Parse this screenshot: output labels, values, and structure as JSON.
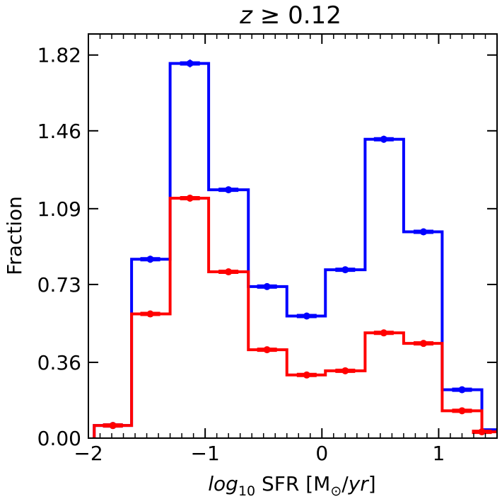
{
  "chart_data": {
    "type": "histogram-step",
    "title": "z ≥ 0.12",
    "title_parts": {
      "var": "z",
      "rest": " ≥ 0.12"
    },
    "xlabel": "log10 SFR [M⊙/yr]",
    "xlabel_parts": {
      "log": "log",
      "sub": "10",
      "mid": " SFR [M",
      "sun_sub": "⊙",
      "slash": "/",
      "yr": "yr",
      "end": "]"
    },
    "ylabel": "Fraction",
    "xlim": [
      -2.0,
      1.5
    ],
    "ylim": [
      0.0,
      1.92
    ],
    "xticks": [
      -2,
      -1,
      0,
      1
    ],
    "xtick_labels": [
      "−2",
      "−1",
      "0",
      "1"
    ],
    "yticks": [
      0.0,
      0.36,
      0.73,
      1.09,
      1.46,
      1.82
    ],
    "ytick_labels": [
      "0.00",
      "0.36",
      "0.73",
      "1.09",
      "1.46",
      "1.82"
    ],
    "bin_edges": [
      -1.95,
      -1.63,
      -1.3,
      -0.97,
      -0.63,
      -0.3,
      0.03,
      0.37,
      0.7,
      1.03,
      1.37,
      1.5
    ],
    "series": [
      {
        "name": "blue",
        "color": "#0000ff",
        "values": [
          0.06,
          0.85,
          1.78,
          1.18,
          0.72,
          0.58,
          0.8,
          1.42,
          0.98,
          0.23,
          0.04
        ],
        "errors": [
          0.003,
          0.01,
          0.012,
          0.009,
          0.007,
          0.006,
          0.008,
          0.01,
          0.009,
          0.004,
          0.002
        ],
        "points": [
          -1.79,
          -1.47,
          -1.13,
          -0.8,
          -0.47,
          -0.13,
          0.2,
          0.53,
          0.87,
          1.2,
          null
        ]
      },
      {
        "name": "red",
        "color": "#ff0000",
        "values": [
          0.06,
          0.59,
          1.14,
          0.79,
          0.42,
          0.3,
          0.32,
          0.5,
          0.45,
          0.13,
          0.03
        ],
        "errors": [
          0.003,
          0.007,
          0.01,
          0.008,
          0.005,
          0.004,
          0.004,
          0.006,
          0.005,
          0.003,
          0.002
        ],
        "points": [
          -1.79,
          -1.47,
          -1.13,
          -0.8,
          -0.47,
          -0.13,
          0.2,
          0.53,
          0.87,
          1.2,
          1.37
        ]
      }
    ]
  }
}
